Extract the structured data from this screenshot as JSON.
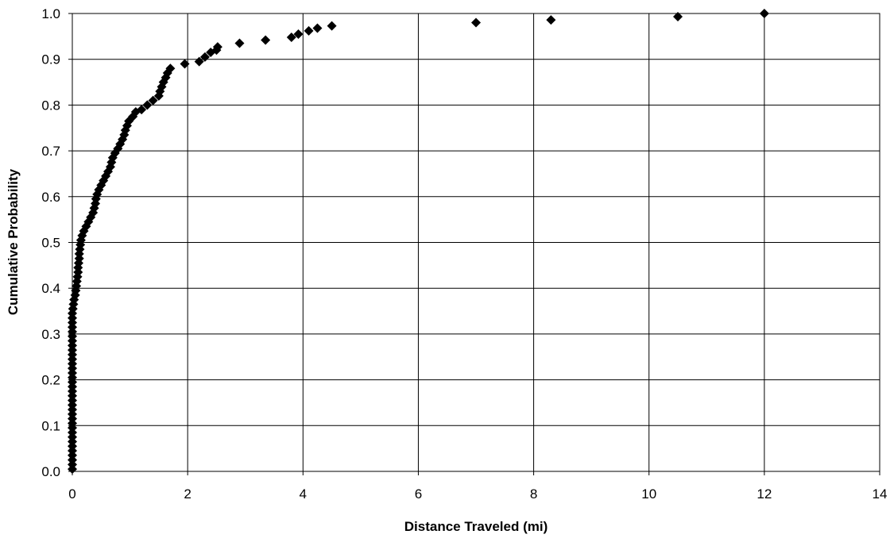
{
  "chart_data": {
    "type": "scatter",
    "title": "",
    "xlabel": "Distance Traveled (mi)",
    "ylabel": "Cumulative Probability",
    "xlim": [
      0,
      14
    ],
    "ylim": [
      0,
      1.0
    ],
    "x_ticks": [
      "0",
      "2",
      "4",
      "6",
      "8",
      "10",
      "12",
      "14"
    ],
    "y_ticks": [
      "0.0",
      "0.1",
      "0.2",
      "0.3",
      "0.4",
      "0.5",
      "0.6",
      "0.7",
      "0.8",
      "0.9",
      "1.0"
    ],
    "grid": {
      "horizontal": true,
      "vertical": true
    },
    "legend": "none",
    "marker": "diamond",
    "colors": {
      "marker": "#000000",
      "grid": "#000000",
      "background": "#ffffff"
    },
    "points": [
      [
        0.0,
        0.005
      ],
      [
        0.0,
        0.015
      ],
      [
        0.0,
        0.025
      ],
      [
        0.0,
        0.035
      ],
      [
        0.0,
        0.045
      ],
      [
        0.0,
        0.055
      ],
      [
        0.0,
        0.065
      ],
      [
        0.0,
        0.075
      ],
      [
        0.0,
        0.085
      ],
      [
        0.0,
        0.095
      ],
      [
        0.0,
        0.105
      ],
      [
        0.0,
        0.115
      ],
      [
        0.0,
        0.125
      ],
      [
        0.0,
        0.135
      ],
      [
        0.0,
        0.145
      ],
      [
        0.0,
        0.155
      ],
      [
        0.0,
        0.165
      ],
      [
        0.0,
        0.175
      ],
      [
        0.0,
        0.185
      ],
      [
        0.0,
        0.195
      ],
      [
        0.0,
        0.205
      ],
      [
        0.0,
        0.215
      ],
      [
        0.0,
        0.225
      ],
      [
        0.0,
        0.235
      ],
      [
        0.0,
        0.245
      ],
      [
        0.0,
        0.255
      ],
      [
        0.0,
        0.265
      ],
      [
        0.0,
        0.275
      ],
      [
        0.0,
        0.285
      ],
      [
        0.0,
        0.295
      ],
      [
        0.0,
        0.305
      ],
      [
        0.0,
        0.315
      ],
      [
        0.0,
        0.325
      ],
      [
        0.0,
        0.335
      ],
      [
        0.0,
        0.345
      ],
      [
        0.01,
        0.355
      ],
      [
        0.02,
        0.365
      ],
      [
        0.03,
        0.375
      ],
      [
        0.05,
        0.385
      ],
      [
        0.06,
        0.395
      ],
      [
        0.07,
        0.405
      ],
      [
        0.08,
        0.415
      ],
      [
        0.09,
        0.425
      ],
      [
        0.1,
        0.435
      ],
      [
        0.1,
        0.445
      ],
      [
        0.11,
        0.455
      ],
      [
        0.12,
        0.465
      ],
      [
        0.12,
        0.475
      ],
      [
        0.13,
        0.485
      ],
      [
        0.14,
        0.495
      ],
      [
        0.15,
        0.505
      ],
      [
        0.17,
        0.515
      ],
      [
        0.2,
        0.525
      ],
      [
        0.24,
        0.535
      ],
      [
        0.28,
        0.545
      ],
      [
        0.32,
        0.555
      ],
      [
        0.36,
        0.565
      ],
      [
        0.38,
        0.575
      ],
      [
        0.4,
        0.585
      ],
      [
        0.41,
        0.595
      ],
      [
        0.43,
        0.605
      ],
      [
        0.46,
        0.615
      ],
      [
        0.5,
        0.625
      ],
      [
        0.54,
        0.635
      ],
      [
        0.58,
        0.645
      ],
      [
        0.62,
        0.655
      ],
      [
        0.66,
        0.665
      ],
      [
        0.68,
        0.675
      ],
      [
        0.7,
        0.685
      ],
      [
        0.74,
        0.695
      ],
      [
        0.79,
        0.705
      ],
      [
        0.83,
        0.715
      ],
      [
        0.87,
        0.725
      ],
      [
        0.9,
        0.735
      ],
      [
        0.92,
        0.745
      ],
      [
        0.95,
        0.755
      ],
      [
        0.98,
        0.765
      ],
      [
        1.05,
        0.775
      ],
      [
        1.1,
        0.785
      ],
      [
        1.2,
        0.79
      ],
      [
        1.3,
        0.8
      ],
      [
        1.4,
        0.81
      ],
      [
        1.5,
        0.82
      ],
      [
        1.52,
        0.83
      ],
      [
        1.55,
        0.84
      ],
      [
        1.58,
        0.85
      ],
      [
        1.62,
        0.86
      ],
      [
        1.65,
        0.87
      ],
      [
        1.7,
        0.88
      ],
      [
        1.95,
        0.89
      ],
      [
        2.2,
        0.895
      ],
      [
        2.3,
        0.905
      ],
      [
        2.4,
        0.915
      ],
      [
        2.5,
        0.92
      ],
      [
        2.52,
        0.927
      ],
      [
        2.9,
        0.935
      ],
      [
        3.35,
        0.942
      ],
      [
        3.8,
        0.948
      ],
      [
        3.92,
        0.955
      ],
      [
        4.1,
        0.962
      ],
      [
        4.25,
        0.968
      ],
      [
        4.5,
        0.973
      ],
      [
        7.0,
        0.98
      ],
      [
        8.3,
        0.986
      ],
      [
        10.5,
        0.993
      ],
      [
        12.0,
        1.0
      ]
    ]
  }
}
